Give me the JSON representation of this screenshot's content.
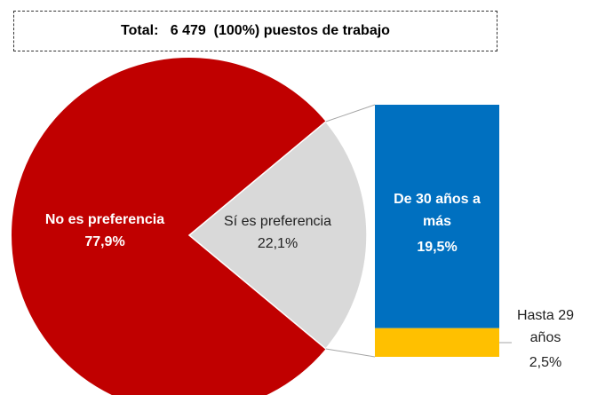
{
  "chart_data": {
    "type": "pie-of-bar",
    "title": "Total:   6 479  (100%) puestos de trabajo",
    "categories": [
      "No es preferencia",
      "Sí es preferencia"
    ],
    "values": [
      77.9,
      22.1
    ],
    "value_labels": [
      "77,9%",
      "22,1%"
    ],
    "colors": [
      "#c00000",
      "#d9d9d9"
    ],
    "bar": {
      "categories": [
        "De 30 años a más",
        "Hasta 29 años"
      ],
      "values": [
        19.5,
        2.5
      ],
      "value_labels": [
        "19,5%",
        "2,5%"
      ],
      "colors": [
        "#0070c0",
        "#ffc000"
      ]
    }
  }
}
